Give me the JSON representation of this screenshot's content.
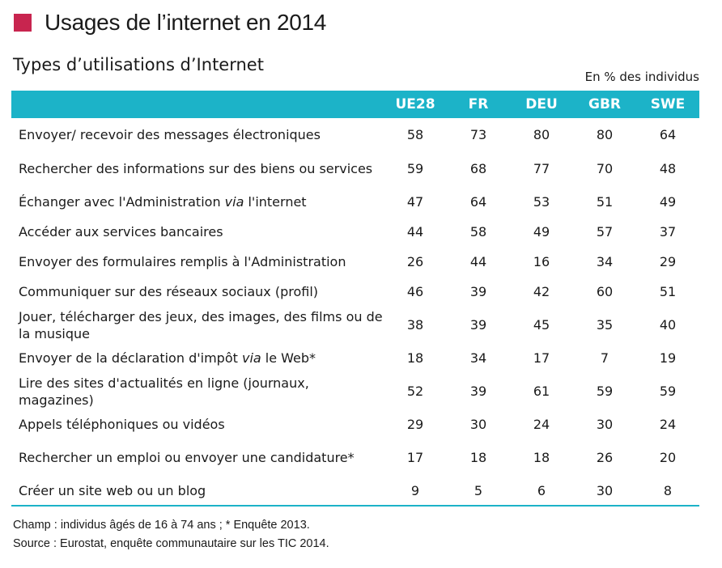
{
  "header": {
    "title": "Usages de l’internet en 2014",
    "accent_color": "#c8254f"
  },
  "subtitle": "Types d’utilisations d’Internet",
  "unit_note": "En % des individus",
  "table": {
    "header_color": "#1cb3c8",
    "columns": [
      "UE28",
      "FR",
      "DEU",
      "GBR",
      "SWE"
    ],
    "rows": [
      {
        "pre": "Envoyer/ recevoir des messages électroniques",
        "em": "",
        "post": "",
        "values": [
          "58",
          "73",
          "80",
          "80",
          "64"
        ]
      },
      {
        "pre": "Rechercher des informations sur des biens ou services",
        "em": "",
        "post": "",
        "values": [
          "59",
          "68",
          "77",
          "70",
          "48"
        ]
      },
      {
        "pre": "Échanger avec l'Administration ",
        "em": "via",
        "post": " l'internet",
        "values": [
          "47",
          "64",
          "53",
          "51",
          "49"
        ]
      },
      {
        "pre": "Accéder aux services bancaires",
        "em": "",
        "post": "",
        "values": [
          "44",
          "58",
          "49",
          "57",
          "37"
        ]
      },
      {
        "pre": "Envoyer des formulaires remplis à l'Administration",
        "em": "",
        "post": "",
        "values": [
          "26",
          "44",
          "16",
          "34",
          "29"
        ]
      },
      {
        "pre": "Communiquer sur des réseaux sociaux (profil)",
        "em": "",
        "post": "",
        "values": [
          "46",
          "39",
          "42",
          "60",
          "51"
        ]
      },
      {
        "pre": "Jouer, télécharger des jeux, des images, des films ou de la musique",
        "em": "",
        "post": "",
        "values": [
          "38",
          "39",
          "45",
          "35",
          "40"
        ]
      },
      {
        "pre": "Envoyer de la déclaration d'impôt ",
        "em": "via",
        "post": " le Web*",
        "values": [
          "18",
          "34",
          "17",
          "7",
          "19"
        ]
      },
      {
        "pre": "Lire des sites d'actualités en ligne (journaux, magazines)",
        "em": "",
        "post": "",
        "values": [
          "52",
          "39",
          "61",
          "59",
          "59"
        ]
      },
      {
        "pre": "Appels téléphoniques ou vidéos",
        "em": "",
        "post": "",
        "values": [
          "29",
          "30",
          "24",
          "30",
          "24"
        ]
      },
      {
        "pre": "Rechercher un emploi ou envoyer une candidature*",
        "em": "",
        "post": "",
        "values": [
          "17",
          "18",
          "18",
          "26",
          "20"
        ]
      },
      {
        "pre": "Créer un site web ou un blog",
        "em": "",
        "post": "",
        "values": [
          "9",
          "5",
          "6",
          "30",
          "8"
        ]
      }
    ]
  },
  "notes": {
    "scope": "Champ : individus âgés de 16 à 74 ans ; * Enquête 2013.",
    "source": "Source : Eurostat, enquête communautaire sur les TIC 2014."
  }
}
